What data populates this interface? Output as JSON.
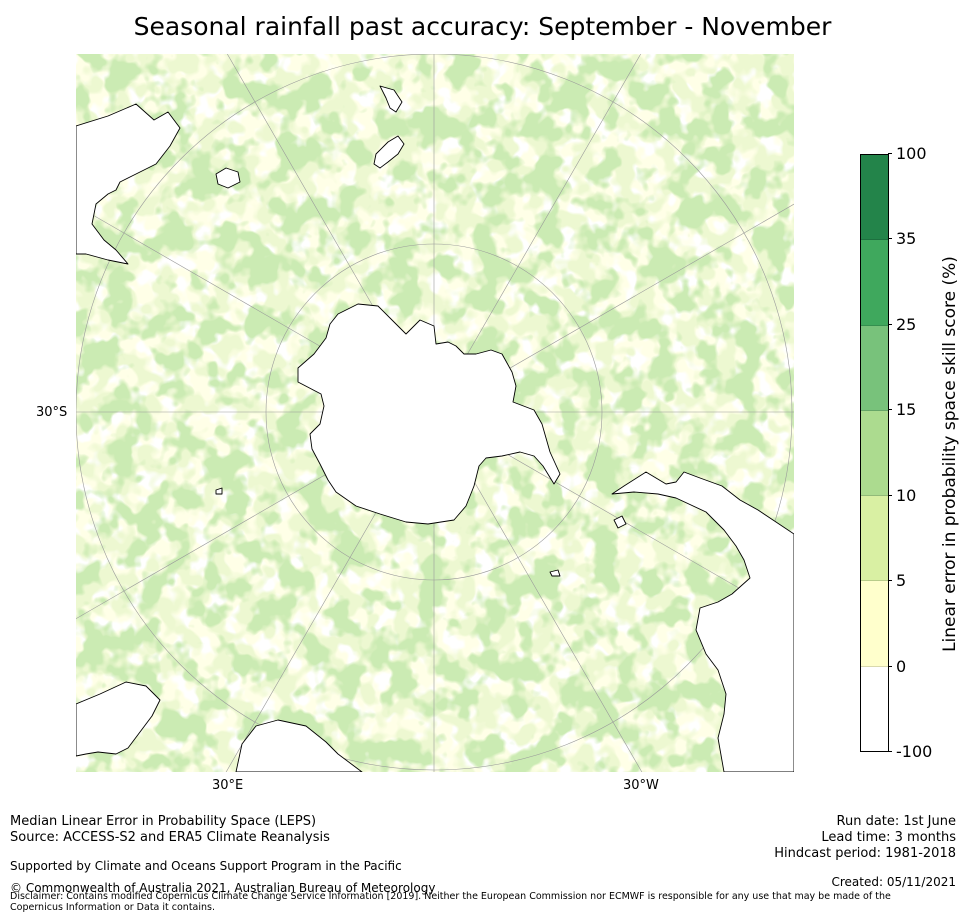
{
  "title": "Seasonal rainfall past accuracy: September - November",
  "map": {
    "projection": "south-polar-stereographic",
    "labels": {
      "lat_30s": "30°S",
      "lon_30e": "30°E",
      "lon_30w": "30°W"
    },
    "land_color": "#ffffff",
    "coastline_color": "#000000",
    "graticule_color": "#9a9a9a"
  },
  "colorbar": {
    "label": "Linear error in probability space skill score (%)",
    "ticks": [
      "100",
      "35",
      "25",
      "15",
      "10",
      "5",
      "0",
      "-100"
    ],
    "colors_top_to_bottom": [
      "#23844a",
      "#3fa85d",
      "#78c27b",
      "#acdb8f",
      "#d9f0a3",
      "#ffffcc",
      "#ffffff"
    ]
  },
  "footer": {
    "left_line1": "Median Linear Error in Probability Space (LEPS)",
    "left_line2": "Source: ACCESS-S2 and ERA5 Climate Reanalysis",
    "left_line3": "Supported by Climate and Oceans Support Program in the Pacific",
    "left_line4": "© Commonwealth of Australia 2021, Australian Bureau of Meteorology",
    "right_line1": "Run date: 1st June",
    "right_line2": "Lead time: 3 months",
    "right_line3": "Hindcast period: 1981-2018",
    "right_line4": "Created: 05/11/2021",
    "disclaimer": "Disclaimer: Contains modified Copernicus Climate Change Service Information [2019]. Neither the European Commission nor ECMWF is responsible for any use that may be made of the Copernicus Information or Data it contains."
  }
}
